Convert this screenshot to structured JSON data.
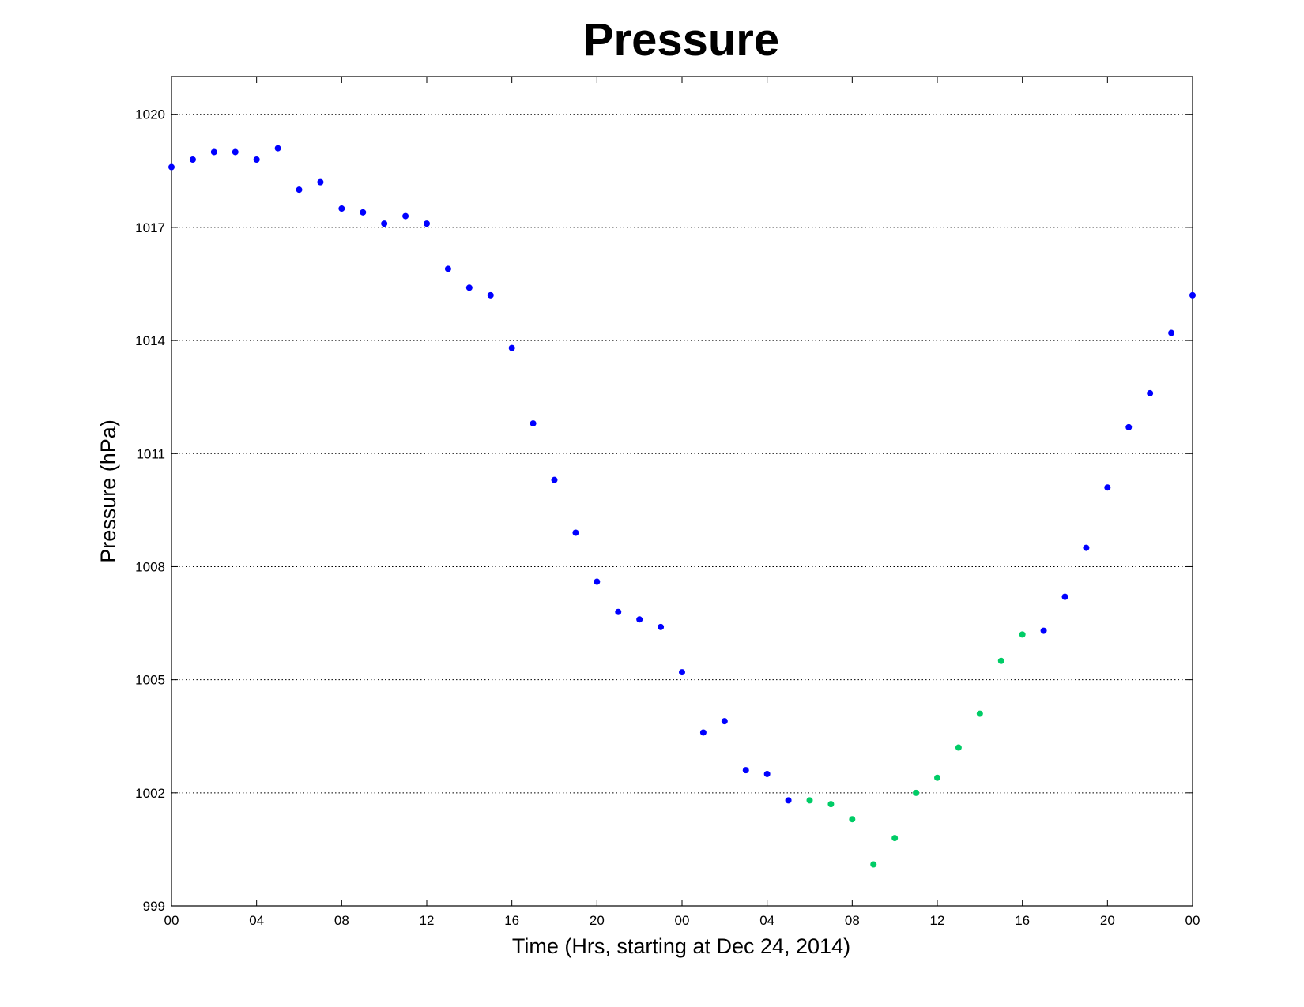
{
  "chart_data": {
    "type": "scatter",
    "title": "Pressure",
    "xlabel": "Time (Hrs, starting at Dec 24, 2014)",
    "ylabel": "Pressure (hPa)",
    "xlim": [
      0,
      48
    ],
    "ylim": [
      999,
      1021
    ],
    "x_ticks": [
      0,
      4,
      8,
      12,
      16,
      20,
      24,
      28,
      32,
      36,
      40,
      44,
      48
    ],
    "x_tick_labels": [
      "00",
      "04",
      "08",
      "12",
      "16",
      "20",
      "00",
      "04",
      "08",
      "12",
      "16",
      "20",
      "00"
    ],
    "y_ticks": [
      999,
      1002,
      1005,
      1008,
      1011,
      1014,
      1017,
      1020
    ],
    "y_tick_labels": [
      "999",
      "1002",
      "1005",
      "1008",
      "1011",
      "1014",
      "1017",
      "1020"
    ],
    "grid": "horizontal dotted",
    "series": [
      {
        "color": "#0000ff",
        "x": [
          0,
          1,
          2,
          3,
          4,
          5,
          6,
          7,
          8,
          9,
          10,
          11,
          12,
          13,
          14,
          15,
          16,
          17,
          18,
          19,
          20,
          21,
          22,
          23,
          24,
          25,
          26,
          27,
          28,
          29,
          41,
          42,
          43,
          44,
          45,
          46,
          47,
          48
        ],
        "y": [
          1018.6,
          1018.8,
          1019.0,
          1019.0,
          1018.8,
          1019.1,
          1018.0,
          1018.2,
          1017.5,
          1017.4,
          1017.1,
          1017.3,
          1017.1,
          1015.9,
          1015.4,
          1015.2,
          1013.8,
          1011.8,
          1010.3,
          1008.9,
          1007.6,
          1006.8,
          1006.6,
          1006.4,
          1005.2,
          1003.6,
          1003.9,
          1002.6,
          1002.5,
          1001.8,
          1006.3,
          1007.2,
          1008.5,
          1010.1,
          1011.7,
          1012.6,
          1014.2,
          1015.2
        ]
      },
      {
        "color": "#00cc66",
        "x": [
          30,
          31,
          32,
          33,
          34,
          35,
          36,
          37,
          38,
          39,
          40
        ],
        "y": [
          1001.8,
          1001.7,
          1001.3,
          1000.1,
          1000.8,
          1002.0,
          1002.4,
          1003.2,
          1004.1,
          1005.5,
          1006.2
        ]
      }
    ]
  }
}
